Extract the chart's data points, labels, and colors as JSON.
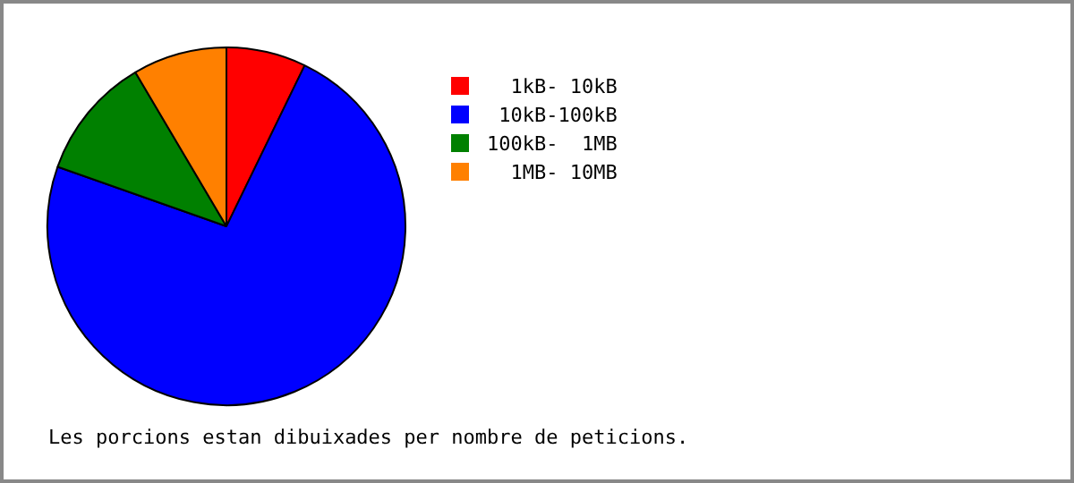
{
  "chart_data": {
    "type": "pie",
    "categories": [
      "  1kB- 10kB",
      " 10kB-100kB",
      "100kB-  1MB",
      "  1MB- 10MB"
    ],
    "values": [
      7.2,
      73.2,
      11.1,
      8.5
    ],
    "colors": [
      "#ff0000",
      "#0000ff",
      "#008000",
      "#ff8000"
    ],
    "legend": "right",
    "annotations": [
      "Les porcions estan dibuixades per nombre de peticions."
    ]
  }
}
